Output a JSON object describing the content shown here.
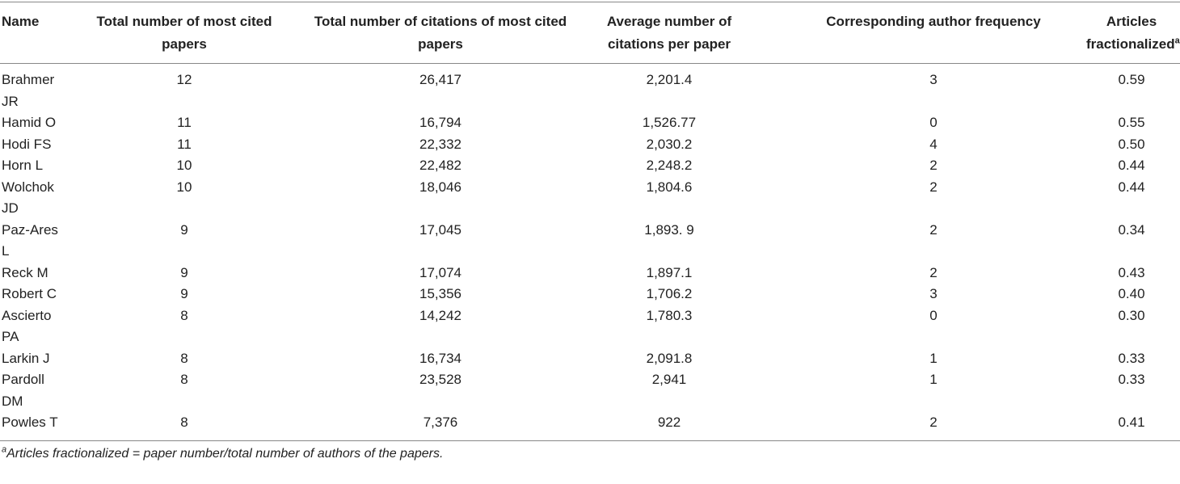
{
  "table": {
    "headers": [
      "Name",
      "Total number of most cited papers",
      "Total number of citations of most cited papers",
      "Average number of citations per paper",
      "Corresponding author frequency",
      "Articles fractionalized"
    ],
    "header_marker": "a",
    "rows": [
      [
        "Brahmer JR",
        "12",
        "26,417",
        "2,201.4",
        "3",
        "0.59"
      ],
      [
        "Hamid O",
        "11",
        "16,794",
        "1,526.77",
        "0",
        "0.55"
      ],
      [
        "Hodi FS",
        "11",
        "22,332",
        "2,030.2",
        "4",
        "0.50"
      ],
      [
        "Horn L",
        "10",
        "22,482",
        "2,248.2",
        "2",
        "0.44"
      ],
      [
        "Wolchok JD",
        "10",
        "18,046",
        "1,804.6",
        "2",
        "0.44"
      ],
      [
        "Paz-Ares L",
        "9",
        "17,045",
        "1,893. 9",
        "2",
        "0.34"
      ],
      [
        "Reck M",
        "9",
        "17,074",
        "1,897.1",
        "2",
        "0.43"
      ],
      [
        "Robert C",
        "9",
        "15,356",
        "1,706.2",
        "3",
        "0.40"
      ],
      [
        "Ascierto PA",
        "8",
        "14,242",
        "1,780.3",
        "0",
        "0.30"
      ],
      [
        "Larkin J",
        "8",
        "16,734",
        "2,091.8",
        "1",
        "0.33"
      ],
      [
        "Pardoll DM",
        "8",
        "23,528",
        "2,941",
        "1",
        "0.33"
      ],
      [
        "Powles T",
        "8",
        "7,376",
        "922",
        "2",
        "0.41"
      ]
    ]
  },
  "footnote": {
    "marker": "a",
    "text": "Articles fractionalized = paper number/total number of authors of the papers."
  }
}
